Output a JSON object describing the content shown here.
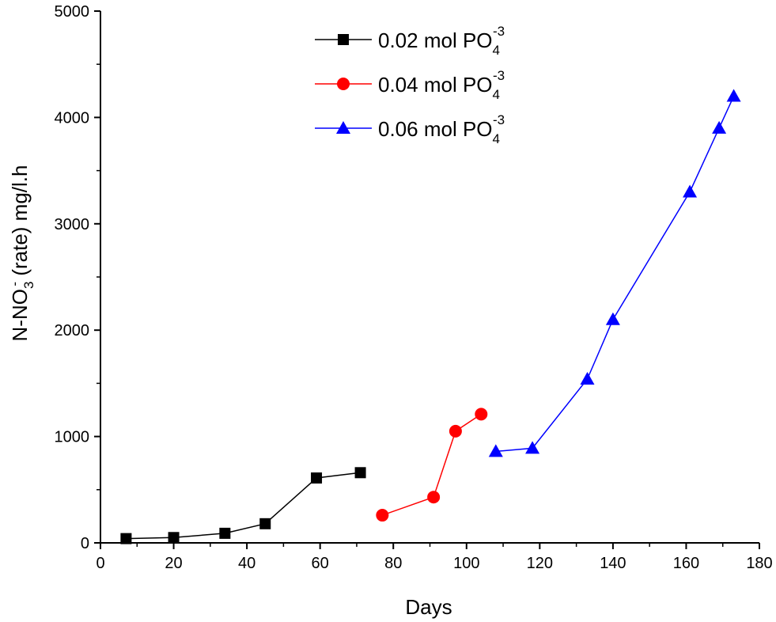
{
  "chart_data": {
    "type": "line",
    "xlabel": "Days",
    "ylabel": {
      "prefix": "N-NO",
      "superscript": "-",
      "subscript": "3",
      "suffix": " (rate) mg/l.h"
    },
    "xlim": [
      0,
      180
    ],
    "ylim": [
      0,
      5000
    ],
    "x_ticks": [
      "0",
      "20",
      "40",
      "60",
      "80",
      "100",
      "120",
      "140",
      "160",
      "180"
    ],
    "y_ticks": [
      "0",
      "1000",
      "2000",
      "3000",
      "4000",
      "5000"
    ],
    "grid": false,
    "legend_position": "top-center",
    "series": [
      {
        "name": "0.02 mol PO",
        "name_sub": "4",
        "name_sup": "-3",
        "color": "#000000",
        "marker": "square",
        "x": [
          7,
          20,
          34,
          45,
          59,
          71
        ],
        "y": [
          40,
          50,
          90,
          180,
          610,
          660
        ]
      },
      {
        "name": "0.04 mol PO",
        "name_sub": "4",
        "name_sup": "-3",
        "color": "#ff0000",
        "marker": "circle",
        "x": [
          77,
          91,
          97,
          104
        ],
        "y": [
          260,
          430,
          1050,
          1210
        ]
      },
      {
        "name": "0.06 mol PO",
        "name_sub": "4",
        "name_sup": "-3",
        "color": "#0000ff",
        "marker": "triangle",
        "x": [
          108,
          118,
          133,
          140,
          161,
          169,
          173
        ],
        "y": [
          860,
          890,
          1540,
          2100,
          3300,
          3900,
          4200
        ]
      }
    ]
  }
}
